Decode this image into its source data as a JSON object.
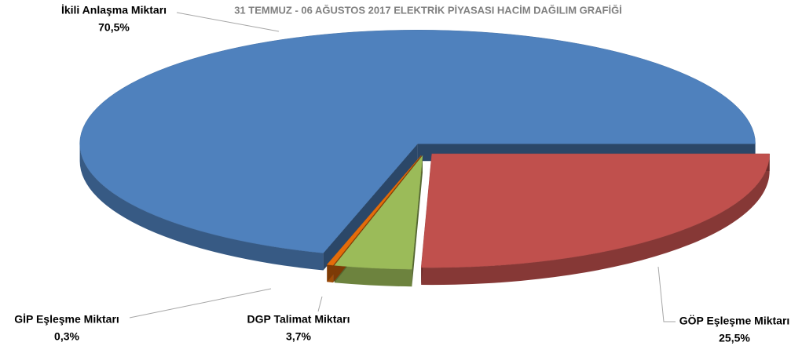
{
  "chart_data": {
    "type": "pie3d",
    "title": "31 TEMMUZ - 06 AĞUSTOS 2017 ELEKTRİK PİYASASI HACİM DAĞILIM GRAFİĞİ",
    "categories": [
      "İkili Anlaşma Miktarı",
      "GÖP Eşleşme Miktarı",
      "DGP Talimat Miktarı",
      "GİP Eşleşme Miktarı"
    ],
    "values": [
      70.5,
      25.5,
      3.7,
      0.3
    ],
    "value_labels": [
      "70,5%",
      "25,5%",
      "3,7%",
      "0,3%"
    ],
    "colors": [
      "#4f81bd",
      "#c0504d",
      "#9bbb59",
      "#e46c0a"
    ]
  }
}
